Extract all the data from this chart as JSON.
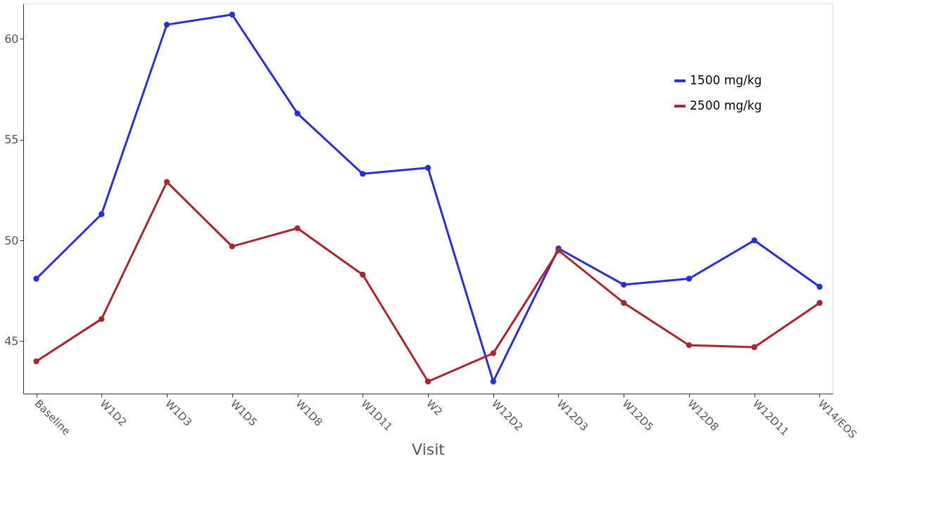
{
  "chart_data": {
    "type": "line",
    "xlabel": "Visit",
    "categories": [
      "Baseline",
      "W1D2",
      "W1D3",
      "W1D5",
      "W1D8",
      "W1D11",
      "W2",
      "W12D2",
      "W12D3",
      "W12D5",
      "W12D8",
      "W12D11",
      "W14/EOS"
    ],
    "series": [
      {
        "name": "1500 mg/kg",
        "color": "#2a2fd0",
        "values": [
          48.1,
          51.3,
          60.7,
          61.2,
          56.3,
          53.3,
          53.6,
          43.0,
          49.6,
          47.8,
          48.1,
          50.0,
          47.7
        ]
      },
      {
        "name": "2500 mg/kg",
        "color": "#a8262f",
        "values": [
          44.0,
          46.1,
          52.9,
          49.7,
          50.6,
          48.3,
          43.0,
          44.4,
          49.5,
          46.9,
          44.8,
          44.7,
          46.9
        ]
      }
    ],
    "ylim": [
      42.4,
      61.75
    ],
    "yticks": [
      45,
      50,
      55,
      60
    ],
    "grid": false,
    "legend": "top right",
    "marker": "circle",
    "line_style": "solid"
  }
}
